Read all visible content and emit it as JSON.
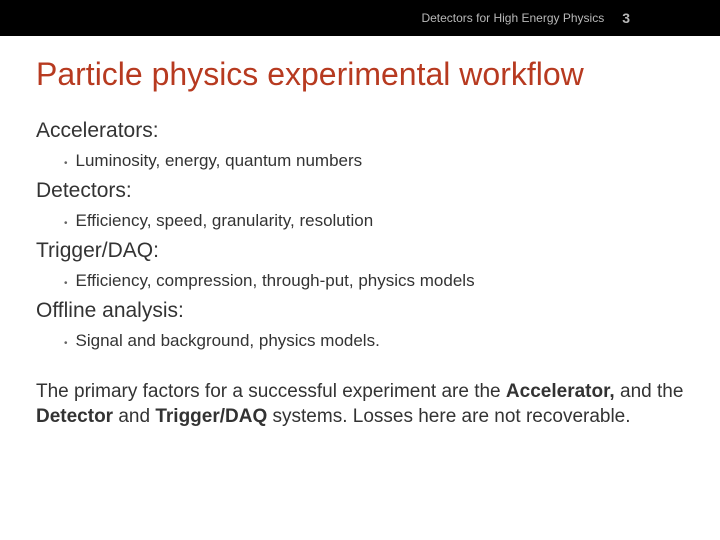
{
  "header": {
    "title": "Detectors for High Energy Physics",
    "page_number": "3",
    "background_color": "#000000",
    "text_color": "#b8b8b8"
  },
  "main_title": {
    "text": "Particle physics experimental workflow",
    "color": "#b73a20",
    "fontsize": 32
  },
  "sections": [
    {
      "heading": "Accelerators:",
      "bullet": "Luminosity, energy, quantum numbers"
    },
    {
      "heading": "Detectors:",
      "bullet": "Efficiency, speed, granularity, resolution"
    },
    {
      "heading": "Trigger/DAQ:",
      "bullet": "Efficiency, compression, through-put, physics models"
    },
    {
      "heading": "Offline analysis:",
      "bullet": "Signal and background, physics models."
    }
  ],
  "summary": {
    "line1_pre": "The primary factors for a successful experiment are the ",
    "bold1": "Accelerator,",
    "mid1": " and the ",
    "bold2": "Detector",
    "mid2": " and ",
    "bold3": "Trigger/DAQ",
    "post": " systems. Losses here are not recoverable."
  },
  "body_text_color": "#333333",
  "bullet_color": "#666666",
  "background_color": "#ffffff"
}
